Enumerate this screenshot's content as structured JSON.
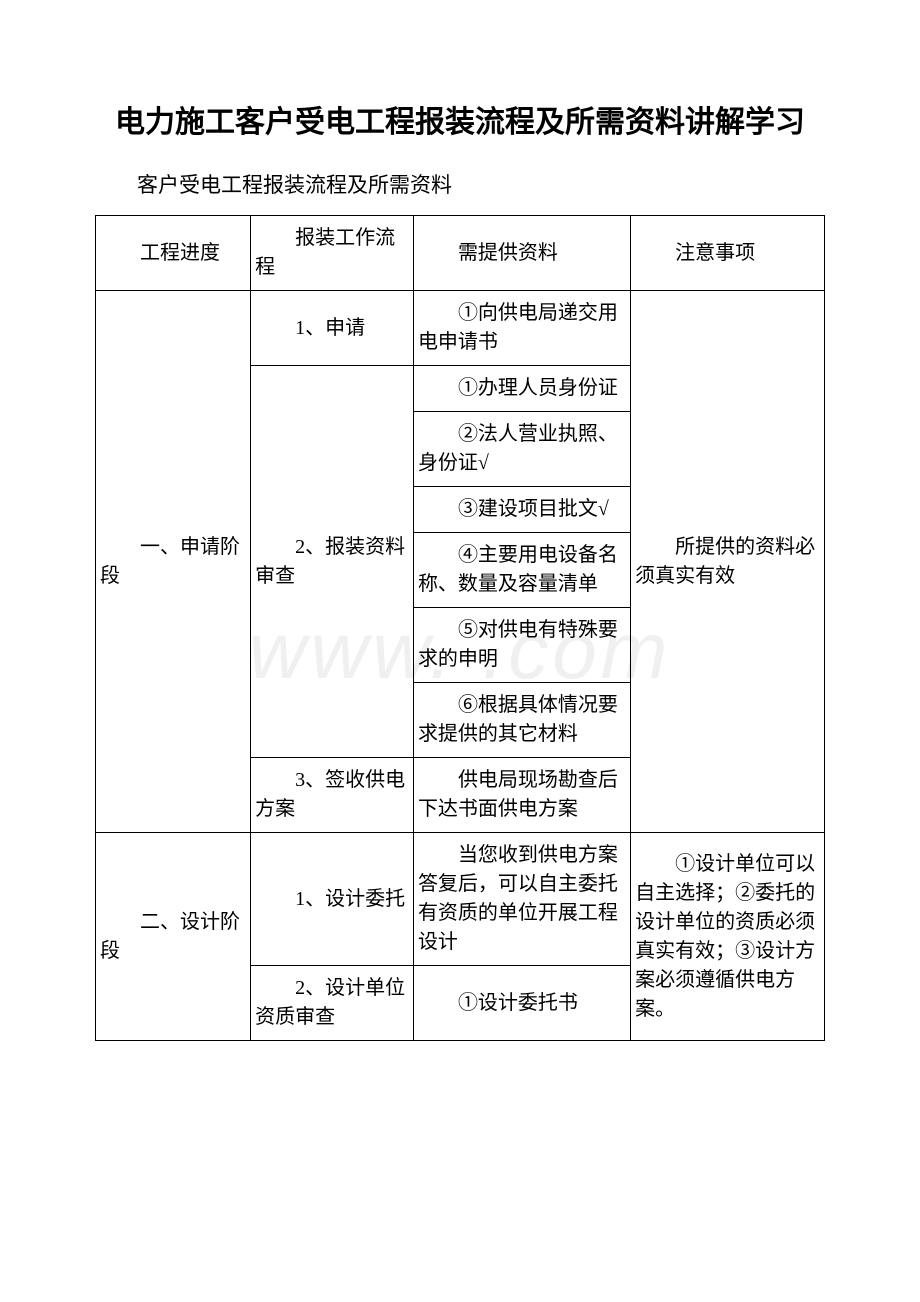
{
  "page": {
    "title": "电力施工客户受电工程报装流程及所需资料讲解学习",
    "subtitle": "客户受电工程报装流程及所需资料",
    "watermark": "www.        .com"
  },
  "table": {
    "header": {
      "col1": "工程进度",
      "col2": "报装工作流程",
      "col3": "需提供资料",
      "col4": "注意事项"
    },
    "section1": {
      "stage": "一、申请阶段",
      "step1": {
        "process": "1、申请",
        "material": "①向供电局递交用电申请书"
      },
      "step2": {
        "process": "2、报装资料审查",
        "material1": "①办理人员身份证",
        "material2": "②法人营业执照、身份证√",
        "material3": "③建设项目批文√",
        "material4": "④主要用电设备名称、数量及容量清单",
        "material5": "⑤对供电有特殊要求的申明",
        "material6": "⑥根据具体情况要求提供的其它材料"
      },
      "step3": {
        "process": "3、签收供电方案",
        "material": "供电局现场勘查后下达书面供电方案"
      },
      "note": "所提供的资料必须真实有效"
    },
    "section2": {
      "stage": "二、设计阶段",
      "step1": {
        "process": "1、设计委托",
        "material": "当您收到供电方案答复后，可以自主委托有资质的单位开展工程设计"
      },
      "step2": {
        "process": "2、设计单位资质审查",
        "material": "①设计委托书"
      },
      "note": "①设计单位可以自主选择；②委托的设计单位的资质必须真实有效；③设计方案必须遵循供电方案。"
    }
  },
  "style": {
    "background_color": "#ffffff",
    "text_color": "#000000",
    "border_color": "#000000",
    "title_fontsize": 30,
    "body_fontsize": 20,
    "subtitle_fontsize": 21
  }
}
